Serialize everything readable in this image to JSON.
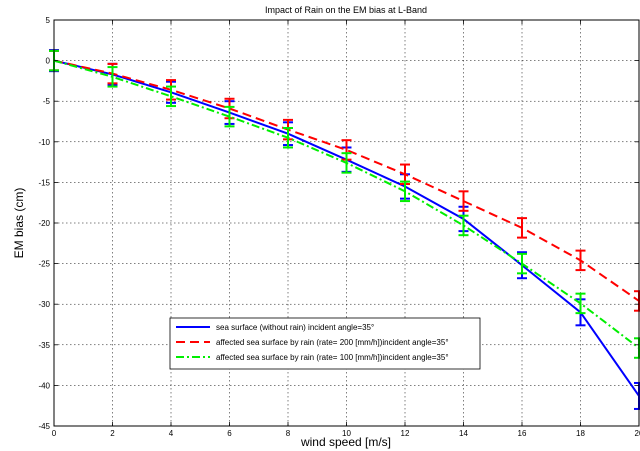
{
  "chart_data": {
    "type": "line",
    "title": "Impact of Rain on the EM bias at L-Band",
    "xlabel": "wind speed [m/s]",
    "ylabel": "EM bias (cm)",
    "xlim": [
      0,
      20
    ],
    "ylim": [
      -45,
      5
    ],
    "x_ticks": [
      0,
      2,
      4,
      6,
      8,
      10,
      12,
      14,
      16,
      18,
      20
    ],
    "y_ticks": [
      5,
      0,
      -5,
      -10,
      -15,
      -20,
      -25,
      -30,
      -35,
      -40,
      -45
    ],
    "grid": true,
    "legend_position": "bottom-center",
    "x": [
      0,
      2,
      4,
      6,
      8,
      10,
      12,
      14,
      16,
      18,
      20
    ],
    "series": [
      {
        "name": "sea surface (without rain) incident angle=35°",
        "color": "#0000ff",
        "line_style": "solid",
        "values": [
          0,
          -1.7,
          -3.9,
          -6.4,
          -9.0,
          -12.2,
          -15.5,
          -19.5,
          -25.2,
          -31.0,
          -41.3
        ],
        "error": [
          1.3,
          1.3,
          1.3,
          1.4,
          1.4,
          1.5,
          1.5,
          1.5,
          1.6,
          1.6,
          1.6
        ]
      },
      {
        "name": "affected sea surface by rain (rate= 200 [mm/h])incident angle=35°",
        "color": "#ff0000",
        "line_style": "dashed",
        "values": [
          0,
          -1.6,
          -3.6,
          -5.9,
          -8.5,
          -11.0,
          -14.0,
          -17.3,
          -20.6,
          -24.6,
          -29.6
        ],
        "error": [
          1.2,
          1.2,
          1.2,
          1.2,
          1.2,
          1.2,
          1.2,
          1.2,
          1.2,
          1.2,
          1.2
        ]
      },
      {
        "name": "affected sea surface by rain (rate= 100 [mm/h])incident angle=35°",
        "color": "#00ee00",
        "line_style": "dashdot",
        "values": [
          0,
          -2.0,
          -4.4,
          -6.9,
          -9.5,
          -12.6,
          -16.1,
          -20.3,
          -25.0,
          -29.9,
          -35.4
        ],
        "error": [
          1.2,
          1.2,
          1.2,
          1.2,
          1.2,
          1.2,
          1.2,
          1.2,
          1.2,
          1.2,
          1.2
        ]
      }
    ]
  }
}
